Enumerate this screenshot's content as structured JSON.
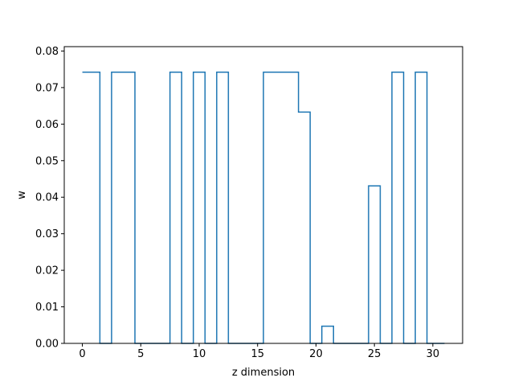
{
  "chart_data": {
    "type": "line",
    "drawstyle": "steps-mid",
    "title": "",
    "xlabel": "z dimension",
    "ylabel": "w",
    "xlim": [
      -1.55,
      32.55
    ],
    "ylim": [
      0,
      0.0812
    ],
    "grid": false,
    "legend": "none",
    "x_ticks": [
      0,
      5,
      10,
      15,
      20,
      25,
      30
    ],
    "x_tick_labels": [
      "0",
      "5",
      "10",
      "15",
      "20",
      "25",
      "30"
    ],
    "y_ticks": [
      0.0,
      0.01,
      0.02,
      0.03,
      0.04,
      0.05,
      0.06,
      0.07,
      0.08
    ],
    "y_tick_labels": [
      "0.00",
      "0.01",
      "0.02",
      "0.03",
      "0.04",
      "0.05",
      "0.06",
      "0.07",
      "0.08"
    ],
    "series": [
      {
        "color": "#1f77b4",
        "x": [
          0,
          1,
          2,
          3,
          4,
          5,
          6,
          7,
          8,
          9,
          10,
          11,
          12,
          13,
          14,
          15,
          16,
          17,
          18,
          19,
          20,
          21,
          22,
          23,
          24,
          25,
          26,
          27,
          28,
          29,
          30,
          31
        ],
        "values": [
          0.0742,
          0.0742,
          0,
          0.0742,
          0.0742,
          0,
          0,
          0,
          0.0742,
          0,
          0.0742,
          0,
          0.0742,
          0,
          0,
          0,
          0.0742,
          0.0742,
          0.0742,
          0.0633,
          0,
          0.0047,
          0,
          0,
          0,
          0.0431,
          0,
          0.0742,
          0,
          0.0742,
          0,
          0
        ]
      }
    ]
  }
}
